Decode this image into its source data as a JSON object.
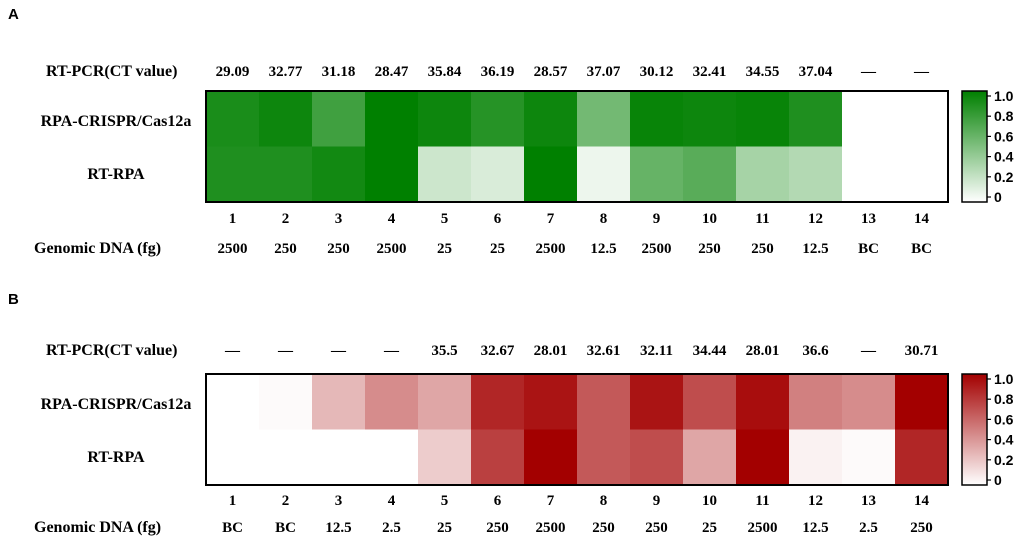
{
  "chart_data": [
    {
      "type": "heatmap",
      "panel": "A",
      "ct_label": "RT-PCR(CT value)",
      "ct_values": [
        "29.09",
        "32.77",
        "31.18",
        "28.47",
        "35.84",
        "36.19",
        "28.57",
        "37.07",
        "30.12",
        "32.41",
        "34.55",
        "37.04",
        "-",
        "-"
      ],
      "rows": [
        "RPA-CRISPR/Cas12a",
        "RT-RPA"
      ],
      "columns": [
        "1",
        "2",
        "3",
        "4",
        "5",
        "6",
        "7",
        "8",
        "9",
        "10",
        "11",
        "12",
        "13",
        "14"
      ],
      "values": [
        [
          0.9,
          0.95,
          0.75,
          1.0,
          0.95,
          0.85,
          0.95,
          0.55,
          0.97,
          0.95,
          0.97,
          0.88,
          0.0,
          0.0
        ],
        [
          0.88,
          0.88,
          0.93,
          1.0,
          0.2,
          0.15,
          1.0,
          0.07,
          0.6,
          0.65,
          0.35,
          0.3,
          0.0,
          0.0
        ]
      ],
      "xlabel": "Genomic DNA (fg)",
      "dna_values": [
        "2500",
        "250",
        "250",
        "2500",
        "25",
        "25",
        "2500",
        "12.5",
        "2500",
        "250",
        "250",
        "12.5",
        "BC",
        "BC"
      ],
      "colorbar": {
        "min": 0,
        "max": 1,
        "ticks": [
          "1.0",
          "0.8",
          "0.6",
          "0.4",
          "0.2",
          "0"
        ],
        "color_low": "#ffffff",
        "color_high": "#008000"
      }
    },
    {
      "type": "heatmap",
      "panel": "B",
      "ct_label": "RT-PCR(CT value)",
      "ct_values": [
        "-",
        "-",
        "-",
        "-",
        "35.5",
        "32.67",
        "28.01",
        "32.61",
        "32.11",
        "34.44",
        "28.01",
        "36.6",
        "-",
        "30.71"
      ],
      "rows": [
        "RPA-CRISPR/Cas12a",
        "RT-RPA"
      ],
      "columns": [
        "1",
        "2",
        "3",
        "4",
        "5",
        "6",
        "7",
        "8",
        "9",
        "10",
        "11",
        "12",
        "13",
        "14"
      ],
      "values": [
        [
          0.0,
          0.02,
          0.28,
          0.45,
          0.35,
          0.85,
          0.92,
          0.65,
          0.92,
          0.7,
          0.95,
          0.5,
          0.45,
          1.0
        ],
        [
          0.0,
          0.0,
          0.0,
          0.0,
          0.2,
          0.75,
          1.0,
          0.65,
          0.7,
          0.35,
          1.0,
          0.05,
          0.02,
          0.85
        ]
      ],
      "xlabel": "Genomic DNA (fg)",
      "dna_values": [
        "BC",
        "BC",
        "12.5",
        "2.5",
        "25",
        "250",
        "2500",
        "250",
        "250",
        "25",
        "2500",
        "12.5",
        "2.5",
        "250"
      ],
      "colorbar": {
        "min": 0,
        "max": 1,
        "ticks": [
          "1.0",
          "0.8",
          "0.6",
          "0.4",
          "0.2",
          "0"
        ],
        "color_low": "#ffffff",
        "color_high": "#a30000"
      }
    }
  ]
}
